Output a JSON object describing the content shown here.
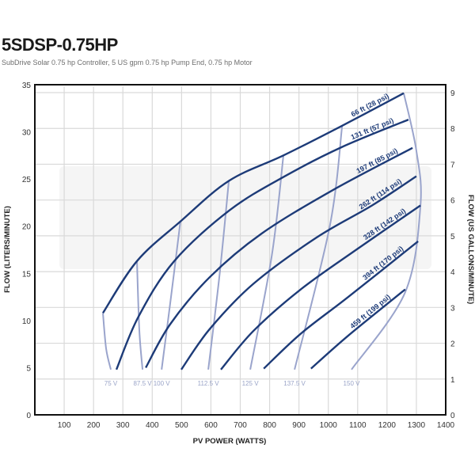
{
  "header": {
    "title": "5SDSP-0.75HP",
    "subtitle": "SubDrive Solar 0.75 hp Controller, 5 US gpm 0.75 hp Pump End, 0.75 hp Motor"
  },
  "colors": {
    "curve": "#1d3b78",
    "voltage_line": "#9aa4cc",
    "grid": "#d9d9d9",
    "axis": "#111111"
  },
  "chart_data": {
    "type": "line",
    "title": "5SDSP-0.75HP",
    "subtitle": "SubDrive Solar 0.75 hp Controller, 5 US gpm 0.75 hp Pump End, 0.75 hp Motor",
    "xlabel": "PV POWER (WATTS)",
    "ylabel": "FLOW (LITERS/MINUTE)",
    "y2label": "FLOW (US GALLONS/MINUTE)",
    "xlim": [
      0,
      1400
    ],
    "ylim": [
      0,
      35
    ],
    "y2lim": [
      0,
      9
    ],
    "xticks": [
      100,
      200,
      300,
      400,
      500,
      600,
      700,
      800,
      900,
      1000,
      1100,
      1200,
      1300,
      1400
    ],
    "yticks": [
      0,
      5,
      10,
      15,
      20,
      25,
      30,
      35
    ],
    "y2ticks": [
      0,
      1,
      2,
      3,
      4,
      5,
      6,
      7,
      8,
      9
    ],
    "grid": true,
    "series": [
      {
        "name": "66 ft (28 psi)",
        "x": [
          232,
          348,
          496,
          661,
          847,
          1044,
          1257
        ],
        "y": [
          10.8,
          16.3,
          20.5,
          24.8,
          27.5,
          30.6,
          34.1
        ]
      },
      {
        "name": "131 ft (57 psi)",
        "x": [
          278,
          353,
          475,
          664,
          852,
          1047,
          1273
        ],
        "y": [
          4.8,
          10.4,
          16.3,
          21.7,
          25.3,
          28.4,
          31.3
        ]
      },
      {
        "name": "197 ft (85 psi)",
        "x": [
          378,
          461,
          596,
          772,
          1014,
          1287
        ],
        "y": [
          5.0,
          9.6,
          14.6,
          19.2,
          23.8,
          28.3
        ]
      },
      {
        "name": "262 ft (114 psi)",
        "x": [
          499,
          596,
          745,
          960,
          1149,
          1300
        ],
        "y": [
          4.8,
          9.1,
          13.9,
          18.8,
          22.2,
          25.3
        ]
      },
      {
        "name": "328 ft (142 psi)",
        "x": [
          634,
          745,
          906,
          1095,
          1314
        ],
        "y": [
          4.8,
          8.9,
          13.3,
          17.5,
          22.2
        ]
      },
      {
        "name": "394 ft (170 psi)",
        "x": [
          780,
          906,
          1068,
          1306
        ],
        "y": [
          4.9,
          8.6,
          12.5,
          18.4
        ]
      },
      {
        "name": "459 ft (199 psi)",
        "x": [
          941,
          1068,
          1262
        ],
        "y": [
          4.9,
          8.4,
          13.3
        ]
      }
    ],
    "voltage_lines": [
      {
        "name": "75 V",
        "x": [
          232,
          243,
          259
        ],
        "y": [
          10.8,
          7.0,
          4.8
        ]
      },
      {
        "name": "87.5 V",
        "x": [
          348,
          356,
          367
        ],
        "y": [
          16.3,
          9.0,
          4.8
        ]
      },
      {
        "name": "100 V",
        "x": [
          496,
          462,
          432
        ],
        "y": [
          20.5,
          12.0,
          4.8
        ]
      },
      {
        "name": "112.5 V",
        "x": [
          661,
          630,
          591
        ],
        "y": [
          24.8,
          15.0,
          4.8
        ]
      },
      {
        "name": "125 V",
        "x": [
          847,
          808,
          734
        ],
        "y": [
          27.5,
          17.0,
          4.8
        ]
      },
      {
        "name": "137.5 V",
        "x": [
          1047,
          1005,
          885
        ],
        "y": [
          30.6,
          20.0,
          4.8
        ]
      },
      {
        "name": "150 V",
        "x": [
          1257,
          1300,
          1314,
          1262,
          1079
        ],
        "y": [
          34.1,
          28.0,
          22.2,
          13.0,
          4.8
        ]
      }
    ]
  }
}
